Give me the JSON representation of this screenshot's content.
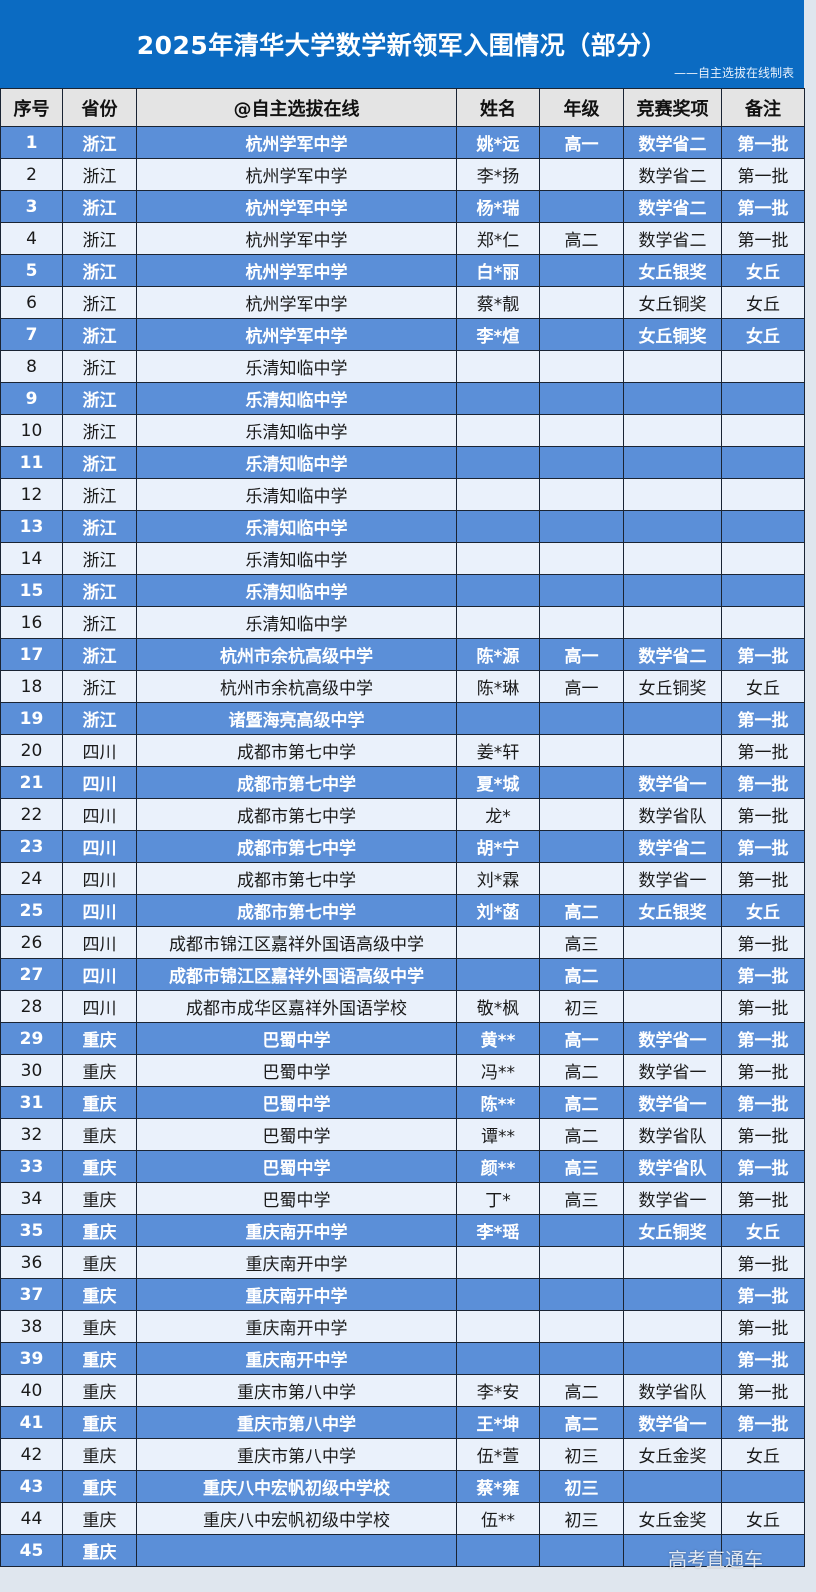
{
  "title": "2025年清华大学数学新领军入围情况（部分）",
  "subtitle": "——自主选拔在线制表",
  "watermark": "高考直通车",
  "colors": {
    "title_band": "#0b6bc2",
    "odd_row": "#5b8fd8",
    "even_row": "#eaf1fb",
    "header": "#e4e4e4"
  },
  "table": {
    "headers": [
      "序号",
      "省份",
      "@自主选拔在线",
      "姓名",
      "年级",
      "竞赛奖项",
      "备注"
    ],
    "rows": [
      [
        "1",
        "浙江",
        "杭州学军中学",
        "姚*远",
        "高一",
        "数学省二",
        "第一批"
      ],
      [
        "2",
        "浙江",
        "杭州学军中学",
        "李*扬",
        "",
        "数学省二",
        "第一批"
      ],
      [
        "3",
        "浙江",
        "杭州学军中学",
        "杨*瑞",
        "",
        "数学省二",
        "第一批"
      ],
      [
        "4",
        "浙江",
        "杭州学军中学",
        "郑*仁",
        "高二",
        "数学省二",
        "第一批"
      ],
      [
        "5",
        "浙江",
        "杭州学军中学",
        "白*丽",
        "",
        "女丘银奖",
        "女丘"
      ],
      [
        "6",
        "浙江",
        "杭州学军中学",
        "蔡*靓",
        "",
        "女丘铜奖",
        "女丘"
      ],
      [
        "7",
        "浙江",
        "杭州学军中学",
        "李*煊",
        "",
        "女丘铜奖",
        "女丘"
      ],
      [
        "8",
        "浙江",
        "乐清知临中学",
        "",
        "",
        "",
        ""
      ],
      [
        "9",
        "浙江",
        "乐清知临中学",
        "",
        "",
        "",
        ""
      ],
      [
        "10",
        "浙江",
        "乐清知临中学",
        "",
        "",
        "",
        ""
      ],
      [
        "11",
        "浙江",
        "乐清知临中学",
        "",
        "",
        "",
        ""
      ],
      [
        "12",
        "浙江",
        "乐清知临中学",
        "",
        "",
        "",
        ""
      ],
      [
        "13",
        "浙江",
        "乐清知临中学",
        "",
        "",
        "",
        ""
      ],
      [
        "14",
        "浙江",
        "乐清知临中学",
        "",
        "",
        "",
        ""
      ],
      [
        "15",
        "浙江",
        "乐清知临中学",
        "",
        "",
        "",
        ""
      ],
      [
        "16",
        "浙江",
        "乐清知临中学",
        "",
        "",
        "",
        ""
      ],
      [
        "17",
        "浙江",
        "杭州市余杭高级中学",
        "陈*源",
        "高一",
        "数学省二",
        "第一批"
      ],
      [
        "18",
        "浙江",
        "杭州市余杭高级中学",
        "陈*琳",
        "高一",
        "女丘铜奖",
        "女丘"
      ],
      [
        "19",
        "浙江",
        "诸暨海亮高级中学",
        "",
        "",
        "",
        "第一批"
      ],
      [
        "20",
        "四川",
        "成都市第七中学",
        "姜*轩",
        "",
        "",
        "第一批"
      ],
      [
        "21",
        "四川",
        "成都市第七中学",
        "夏*城",
        "",
        "数学省一",
        "第一批"
      ],
      [
        "22",
        "四川",
        "成都市第七中学",
        "龙*",
        "",
        "数学省队",
        "第一批"
      ],
      [
        "23",
        "四川",
        "成都市第七中学",
        "胡*宁",
        "",
        "数学省二",
        "第一批"
      ],
      [
        "24",
        "四川",
        "成都市第七中学",
        "刘*霖",
        "",
        "数学省一",
        "第一批"
      ],
      [
        "25",
        "四川",
        "成都市第七中学",
        "刘*菡",
        "高二",
        "女丘银奖",
        "女丘"
      ],
      [
        "26",
        "四川",
        "成都市锦江区嘉祥外国语高级中学",
        "",
        "高三",
        "",
        "第一批"
      ],
      [
        "27",
        "四川",
        "成都市锦江区嘉祥外国语高级中学",
        "",
        "高二",
        "",
        "第一批"
      ],
      [
        "28",
        "四川",
        "成都市成华区嘉祥外国语学校",
        "敬*枫",
        "初三",
        "",
        "第一批"
      ],
      [
        "29",
        "重庆",
        "巴蜀中学",
        "黄**",
        "高一",
        "数学省一",
        "第一批"
      ],
      [
        "30",
        "重庆",
        "巴蜀中学",
        "冯**",
        "高二",
        "数学省一",
        "第一批"
      ],
      [
        "31",
        "重庆",
        "巴蜀中学",
        "陈**",
        "高二",
        "数学省一",
        "第一批"
      ],
      [
        "32",
        "重庆",
        "巴蜀中学",
        "谭**",
        "高二",
        "数学省队",
        "第一批"
      ],
      [
        "33",
        "重庆",
        "巴蜀中学",
        "颜**",
        "高三",
        "数学省队",
        "第一批"
      ],
      [
        "34",
        "重庆",
        "巴蜀中学",
        "丁*",
        "高三",
        "数学省一",
        "第一批"
      ],
      [
        "35",
        "重庆",
        "重庆南开中学",
        "李*瑶",
        "",
        "女丘铜奖",
        "女丘"
      ],
      [
        "36",
        "重庆",
        "重庆南开中学",
        "",
        "",
        "",
        "第一批"
      ],
      [
        "37",
        "重庆",
        "重庆南开中学",
        "",
        "",
        "",
        "第一批"
      ],
      [
        "38",
        "重庆",
        "重庆南开中学",
        "",
        "",
        "",
        "第一批"
      ],
      [
        "39",
        "重庆",
        "重庆南开中学",
        "",
        "",
        "",
        "第一批"
      ],
      [
        "40",
        "重庆",
        "重庆市第八中学",
        "李*安",
        "高二",
        "数学省队",
        "第一批"
      ],
      [
        "41",
        "重庆",
        "重庆市第八中学",
        "王*坤",
        "高二",
        "数学省一",
        "第一批"
      ],
      [
        "42",
        "重庆",
        "重庆市第八中学",
        "伍*萱",
        "初三",
        "女丘金奖",
        "女丘"
      ],
      [
        "43",
        "重庆",
        "重庆八中宏帆初级中学校",
        "蔡*雍",
        "初三",
        "",
        ""
      ],
      [
        "44",
        "重庆",
        "重庆八中宏帆初级中学校",
        "伍**",
        "初三",
        "女丘金奖",
        "女丘"
      ],
      [
        "45",
        "重庆",
        "",
        "",
        "",
        "",
        ""
      ]
    ]
  }
}
